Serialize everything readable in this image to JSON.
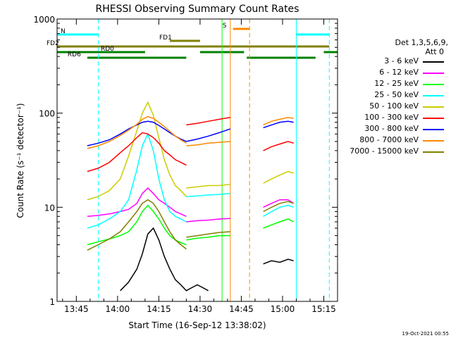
{
  "chart_data": {
    "type": "line",
    "title": "RHESSI Observing Summary Count Rates",
    "xlabel": "Start Time (16-Sep-12 13:38:02)",
    "ylabel": "Count Rate (s⁻¹ detector⁻¹)",
    "yscale": "log",
    "ylim": [
      1,
      1000
    ],
    "xlim": [
      "13:38",
      "15:20"
    ],
    "x_ticks": [
      "13:45",
      "14:00",
      "14:15",
      "14:30",
      "14:45",
      "15:00",
      "15:15"
    ],
    "y_ticks": [
      "1",
      "10",
      "100",
      "1000"
    ],
    "timestamp": "19-Oct-2021 00:55",
    "legend": {
      "header": [
        "Det 1,3,5,6,9,",
        "Att 0"
      ],
      "placement": "right"
    },
    "series": [
      {
        "name": "3 - 6 keV",
        "color": "#000000",
        "segments": [
          {
            "x": [
              "14:01",
              "14:04",
              "14:07",
              "14:09",
              "14:11",
              "14:13",
              "14:15",
              "14:17",
              "14:19",
              "14:21",
              "14:23",
              "14:25",
              "14:27",
              "14:29",
              "14:31",
              "14:33"
            ],
            "y": [
              1.3,
              1.6,
              2.2,
              3.2,
              5.2,
              6,
              4.5,
              3,
              2.2,
              1.7,
              1.5,
              1.3,
              1.4,
              1.5,
              1.4,
              1.3
            ]
          },
          {
            "x": [
              "14:53",
              "14:56",
              "14:59",
              "15:02",
              "15:04"
            ],
            "y": [
              2.5,
              2.7,
              2.6,
              2.8,
              2.7
            ]
          }
        ]
      },
      {
        "name": "6 - 12 keV",
        "color": "#ff00ff",
        "segments": [
          {
            "x": [
              "13:49",
              "13:53",
              "13:57",
              "14:01",
              "14:04",
              "14:07",
              "14:09",
              "14:11",
              "14:13",
              "14:15",
              "14:17",
              "14:19",
              "14:21",
              "14:23",
              "14:25"
            ],
            "y": [
              8,
              8.2,
              8.5,
              9,
              9.5,
              11,
              14,
              16,
              14,
              12,
              11,
              10,
              9,
              8.5,
              8
            ]
          },
          {
            "x": [
              "14:25",
              "14:29",
              "14:33",
              "14:37",
              "14:41"
            ],
            "y": [
              7,
              7.2,
              7.3,
              7.5,
              7.6
            ]
          },
          {
            "x": [
              "14:53",
              "14:56",
              "14:59",
              "15:02",
              "15:04"
            ],
            "y": [
              10,
              11,
              12,
              12,
              11
            ]
          }
        ]
      },
      {
        "name": "12 - 25 keV",
        "color": "#00ff00",
        "segments": [
          {
            "x": [
              "13:49",
              "13:53",
              "13:57",
              "14:01",
              "14:04",
              "14:07",
              "14:09",
              "14:11",
              "14:13",
              "14:15",
              "14:17",
              "14:19",
              "14:21",
              "14:23",
              "14:25"
            ],
            "y": [
              4,
              4.3,
              4.6,
              5,
              5.5,
              7,
              9,
              10.5,
              9,
              7.5,
              6,
              5,
              4.5,
              4.2,
              4
            ]
          },
          {
            "x": [
              "14:25",
              "14:29",
              "14:33",
              "14:37",
              "14:41"
            ],
            "y": [
              4.5,
              4.7,
              4.8,
              5,
              5
            ]
          },
          {
            "x": [
              "14:53",
              "14:56",
              "14:59",
              "15:02",
              "15:04"
            ],
            "y": [
              6,
              6.5,
              7,
              7.5,
              7
            ]
          }
        ]
      },
      {
        "name": "25 - 50 keV",
        "color": "#00ffff",
        "segments": [
          {
            "x": [
              "13:49",
              "13:53",
              "13:57",
              "14:01",
              "14:04",
              "14:07",
              "14:09",
              "14:11",
              "14:13",
              "14:15",
              "14:17",
              "14:19",
              "14:21",
              "14:23",
              "14:25"
            ],
            "y": [
              6,
              6.5,
              7.5,
              9,
              12,
              25,
              45,
              60,
              40,
              20,
              12,
              9,
              8,
              7.5,
              7
            ]
          },
          {
            "x": [
              "14:25",
              "14:29",
              "14:33",
              "14:37",
              "14:41"
            ],
            "y": [
              13,
              13.2,
              13.5,
              13.7,
              14
            ]
          },
          {
            "x": [
              "14:53",
              "14:56",
              "14:59",
              "15:02",
              "15:04"
            ],
            "y": [
              8,
              9,
              10,
              10.5,
              10
            ]
          }
        ]
      },
      {
        "name": "50 - 100 keV",
        "color": "#cccc00",
        "segments": [
          {
            "x": [
              "13:49",
              "13:53",
              "13:57",
              "14:01",
              "14:04",
              "14:07",
              "14:09",
              "14:11",
              "14:13",
              "14:15",
              "14:17",
              "14:19",
              "14:21",
              "14:23",
              "14:25"
            ],
            "y": [
              12,
              13,
              15,
              20,
              35,
              65,
              100,
              130,
              95,
              55,
              32,
              22,
              17,
              15,
              13
            ]
          },
          {
            "x": [
              "14:25",
              "14:29",
              "14:33",
              "14:37",
              "14:41"
            ],
            "y": [
              16,
              16.5,
              17,
              17,
              17.5
            ]
          },
          {
            "x": [
              "14:53",
              "14:56",
              "14:59",
              "15:02",
              "15:04"
            ],
            "y": [
              18,
              20,
              22,
              24,
              23
            ]
          }
        ]
      },
      {
        "name": "100 - 300 keV",
        "color": "#ff0000",
        "segments": [
          {
            "x": [
              "13:49",
              "13:53",
              "13:57",
              "14:01",
              "14:04",
              "14:07",
              "14:09",
              "14:11",
              "14:13",
              "14:15",
              "14:17",
              "14:19",
              "14:21",
              "14:23",
              "14:25"
            ],
            "y": [
              24,
              26,
              30,
              38,
              45,
              55,
              62,
              60,
              55,
              48,
              40,
              36,
              32,
              30,
              28
            ]
          },
          {
            "x": [
              "14:25",
              "14:29",
              "14:33",
              "14:37",
              "14:41"
            ],
            "y": [
              75,
              78,
              82,
              86,
              90
            ]
          },
          {
            "x": [
              "14:53",
              "14:56",
              "14:59",
              "15:02",
              "15:04"
            ],
            "y": [
              40,
              44,
              47,
              50,
              48
            ]
          }
        ]
      },
      {
        "name": "300 - 800 keV",
        "color": "#0000ff",
        "segments": [
          {
            "x": [
              "13:49",
              "13:53",
              "13:57",
              "14:01",
              "14:04",
              "14:07",
              "14:09",
              "14:11",
              "14:13",
              "14:15",
              "14:17",
              "14:19",
              "14:21",
              "14:23",
              "14:25"
            ],
            "y": [
              45,
              48,
              52,
              60,
              68,
              75,
              80,
              82,
              80,
              74,
              68,
              62,
              57,
              53,
              50
            ]
          },
          {
            "x": [
              "14:25",
              "14:29",
              "14:33",
              "14:37",
              "14:41"
            ],
            "y": [
              50,
              53,
              57,
              62,
              68
            ]
          },
          {
            "x": [
              "14:53",
              "14:56",
              "14:59",
              "15:02",
              "15:04"
            ],
            "y": [
              70,
              75,
              80,
              82,
              80
            ]
          }
        ]
      },
      {
        "name": "800 - 7000 keV",
        "color": "#ff8800",
        "segments": [
          {
            "x": [
              "13:49",
              "13:53",
              "13:57",
              "14:01",
              "14:04",
              "14:07",
              "14:09",
              "14:11",
              "14:13",
              "14:15",
              "14:17",
              "14:19",
              "14:21",
              "14:23",
              "14:25"
            ],
            "y": [
              42,
              45,
              50,
              58,
              66,
              76,
              86,
              92,
              88,
              80,
              72,
              64,
              57,
              52,
              48
            ]
          },
          {
            "x": [
              "14:25",
              "14:29",
              "14:33",
              "14:37",
              "14:41"
            ],
            "y": [
              45,
              46,
              48,
              49,
              50
            ]
          },
          {
            "x": [
              "14:53",
              "14:56",
              "14:59",
              "15:02",
              "15:04"
            ],
            "y": [
              75,
              82,
              86,
              90,
              88
            ]
          }
        ]
      },
      {
        "name": "7000 - 15000 keV",
        "color": "#808000",
        "segments": [
          {
            "x": [
              "13:49",
              "13:53",
              "13:57",
              "14:01",
              "14:04",
              "14:07",
              "14:09",
              "14:11",
              "14:13",
              "14:15",
              "14:17",
              "14:19",
              "14:21",
              "14:23",
              "14:25"
            ],
            "y": [
              3.5,
              4,
              4.6,
              5.5,
              7,
              9,
              11,
              12,
              11,
              9,
              7,
              5.5,
              4.5,
              4,
              3.6
            ]
          },
          {
            "x": [
              "14:25",
              "14:29",
              "14:33",
              "14:37",
              "14:41"
            ],
            "y": [
              4.8,
              5,
              5.2,
              5.4,
              5.5
            ]
          },
          {
            "x": [
              "14:53",
              "14:56",
              "14:59",
              "15:02",
              "15:04"
            ],
            "y": [
              9,
              10,
              11,
              11.5,
              11
            ]
          }
        ]
      }
    ],
    "state_bars": [
      {
        "label": "N",
        "color": "#00ffff",
        "row": 1,
        "spans": [
          [
            "13:38",
            "13:53"
          ],
          [
            "15:05",
            "15:17"
          ]
        ]
      },
      {
        "label": "S",
        "color": "#ff8800",
        "row": 0,
        "spans": [
          [
            "14:42",
            "14:48"
          ]
        ]
      },
      {
        "label": "FD1",
        "color": "#808000",
        "row": 2,
        "spans": [
          [
            "14:19",
            "14:30"
          ]
        ]
      },
      {
        "label": "FD2",
        "color": "#808000",
        "row": 3,
        "spans": [
          [
            "13:38",
            "15:17"
          ]
        ]
      },
      {
        "label": "RD0",
        "color": "#008000",
        "row": 4,
        "spans": [
          [
            "13:38",
            "14:10"
          ],
          [
            "14:30",
            "14:46"
          ],
          [
            "15:15",
            "15:20"
          ]
        ]
      },
      {
        "label": "RD6",
        "color": "#008000",
        "row": 5,
        "spans": [
          [
            "13:49",
            "14:25"
          ],
          [
            "14:47",
            "15:12"
          ]
        ]
      }
    ],
    "vertical_lines": [
      {
        "x": "13:53",
        "color": "#00ffff",
        "dashed": true
      },
      {
        "x": "15:05",
        "color": "#00ffff",
        "dashed": false
      },
      {
        "x": "15:17",
        "color": "#00ffff",
        "dashed": true
      },
      {
        "x": "14:41",
        "color": "#ff8800",
        "dashed": false
      },
      {
        "x": "14:48",
        "color": "#ff8800",
        "dashed": true
      },
      {
        "x": "14:38",
        "color": "#00ff00",
        "dashed": false
      }
    ]
  }
}
